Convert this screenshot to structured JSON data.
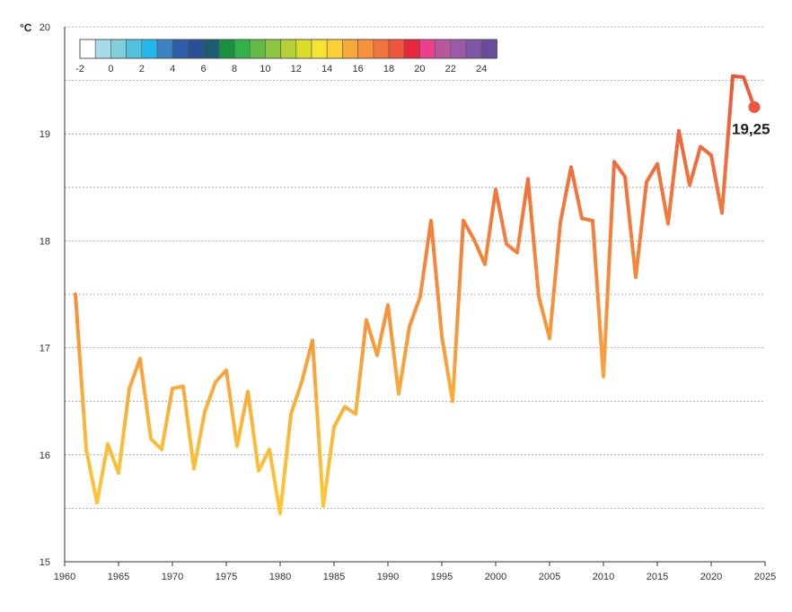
{
  "chart_data": {
    "type": "line",
    "yunit": "°C",
    "xlim": [
      1960,
      2025
    ],
    "ylim": [
      15,
      20
    ],
    "x_ticks": [
      1960,
      1965,
      1970,
      1975,
      1980,
      1985,
      1990,
      1995,
      2000,
      2005,
      2010,
      2015,
      2020,
      2025
    ],
    "y_ticks": [
      15,
      16,
      17,
      18,
      19,
      20
    ],
    "grid": "horizontal dashed",
    "x": [
      1961,
      1962,
      1963,
      1964,
      1965,
      1966,
      1967,
      1968,
      1969,
      1970,
      1971,
      1972,
      1973,
      1974,
      1975,
      1976,
      1977,
      1978,
      1979,
      1980,
      1981,
      1982,
      1983,
      1984,
      1985,
      1986,
      1987,
      1988,
      1989,
      1990,
      1991,
      1992,
      1993,
      1994,
      1995,
      1996,
      1997,
      1998,
      1999,
      2000,
      2001,
      2002,
      2003,
      2004,
      2005,
      2006,
      2007,
      2008,
      2009,
      2010,
      2011,
      2012,
      2013,
      2014,
      2015,
      2016,
      2017,
      2018,
      2019,
      2020,
      2021,
      2022,
      2023,
      2024
    ],
    "values": [
      17.5,
      16.05,
      15.55,
      16.1,
      15.83,
      16.62,
      16.9,
      16.15,
      16.05,
      16.62,
      16.64,
      15.87,
      16.4,
      16.68,
      16.79,
      16.08,
      16.59,
      15.85,
      16.05,
      15.45,
      16.38,
      16.68,
      17.07,
      15.52,
      16.26,
      16.45,
      16.38,
      17.26,
      16.93,
      17.4,
      16.57,
      17.2,
      17.48,
      18.19,
      17.11,
      16.5,
      18.19,
      18.01,
      17.78,
      18.48,
      17.97,
      17.89,
      18.58,
      17.48,
      17.09,
      18.17,
      18.69,
      18.21,
      18.19,
      16.73,
      18.74,
      18.6,
      17.66,
      18.55,
      18.72,
      18.16,
      19.03,
      18.52,
      18.88,
      18.8,
      18.26,
      19.54,
      19.53,
      19.25
    ],
    "end_point": {
      "year": 2024,
      "value": 19.25,
      "label": "19,25"
    },
    "color_scale": {
      "labels": [
        "-2",
        "0",
        "2",
        "4",
        "6",
        "8",
        "10",
        "12",
        "14",
        "16",
        "18",
        "20",
        "22",
        "24"
      ],
      "colors": [
        "#ffffff",
        "#a7dbe6",
        "#7fcfdd",
        "#4fc3dd",
        "#24b8ea",
        "#3a82c4",
        "#2f5ea8",
        "#2b4f99",
        "#1c5d73",
        "#1a9041",
        "#2fb24a",
        "#63bb45",
        "#8cc63f",
        "#b7d134",
        "#d9de2a",
        "#f5e430",
        "#fdd035",
        "#f9a93a",
        "#f7913b",
        "#f3743a",
        "#ef553a",
        "#e8263c",
        "#ec3f8e",
        "#b9579c",
        "#9a5aa6",
        "#7f55a4",
        "#6a4c9e"
      ]
    }
  }
}
